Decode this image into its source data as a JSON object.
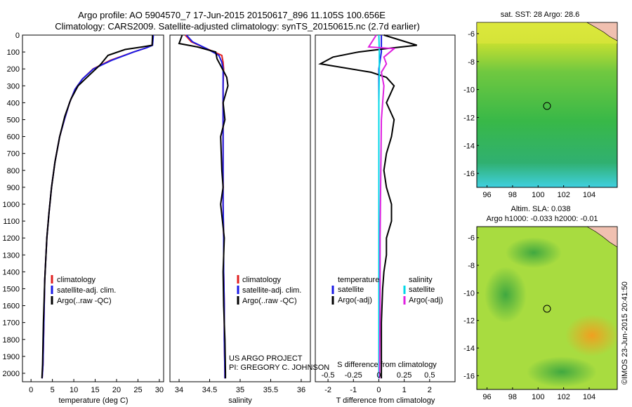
{
  "header": {
    "line1": "Argo profile: AO 5904570_7 17-Jun-2015 20150617_896 11.105S 100.656E",
    "line2": "Climatology: CARS2009. Satellite-adjusted climatology: synTS_20150615.nc (2.7d earlier)"
  },
  "colors": {
    "climatology": "#e02020",
    "satellite": "#1a1ae6",
    "argo": "#000000",
    "sat_salinity": "#00d8e8",
    "argo_salinity": "#e020e0"
  },
  "depth_axis": {
    "range": [
      0,
      2050
    ],
    "ticks": [
      0,
      100,
      200,
      300,
      400,
      500,
      600,
      700,
      800,
      900,
      1000,
      1100,
      1200,
      1300,
      1400,
      1500,
      1600,
      1700,
      1800,
      1900,
      2000
    ]
  },
  "chart_data": [
    {
      "type": "line",
      "id": "temperature",
      "xlabel": "temperature (deg C)",
      "xlim": [
        -2,
        31
      ],
      "xticks": [
        0,
        5,
        10,
        15,
        20,
        25,
        30
      ],
      "ylim": [
        0,
        2050
      ],
      "legend": [
        "climatology",
        "satellite-adj. clim.",
        "Argo(..raw -QC)"
      ],
      "series": [
        {
          "name": "climatology",
          "color": "climatology",
          "x": [
            28.5,
            28.3,
            27.0,
            24.0,
            18.5,
            14.5,
            12.0,
            10.3,
            9.0,
            7.8,
            6.7,
            5.6,
            4.8,
            4.2,
            3.7,
            3.2,
            3.0,
            2.8,
            2.6
          ],
          "y": [
            0,
            60,
            75,
            100,
            150,
            200,
            260,
            320,
            400,
            500,
            600,
            750,
            900,
            1050,
            1200,
            1450,
            1700,
            1950,
            2030
          ]
        },
        {
          "name": "satellite-adj. clim.",
          "color": "satellite",
          "x": [
            28.6,
            28.4,
            27.0,
            24.0,
            18.8,
            14.6,
            12.0,
            10.3,
            9.0,
            7.8,
            6.7,
            5.6,
            4.8,
            4.2,
            3.7,
            3.2,
            3.0,
            2.8,
            2.6
          ],
          "y": [
            0,
            60,
            75,
            100,
            150,
            200,
            260,
            320,
            400,
            500,
            600,
            750,
            900,
            1050,
            1200,
            1450,
            1700,
            1950,
            2030
          ]
        },
        {
          "name": "Argo(..raw -QC)",
          "color": "argo",
          "x": [
            28.4,
            28.3,
            26.0,
            22.0,
            18.0,
            16.2,
            13.5,
            11.0,
            9.3,
            7.9,
            6.7,
            5.6,
            4.8,
            4.2,
            3.7,
            3.2,
            2.9,
            2.7,
            2.55
          ],
          "y": [
            0,
            60,
            70,
            85,
            120,
            175,
            240,
            300,
            380,
            480,
            600,
            750,
            900,
            1050,
            1200,
            1450,
            1700,
            1950,
            2030
          ]
        }
      ]
    },
    {
      "type": "line",
      "id": "salinity",
      "xlabel": "salinity",
      "xlim": [
        33.85,
        36.15
      ],
      "xticks": [
        34,
        34.5,
        35,
        35.5,
        36
      ],
      "ylim": [
        0,
        2050
      ],
      "legend": [
        "climatology",
        "satellite-adj. clim.",
        "Argo(..raw -QC)"
      ],
      "series": [
        {
          "name": "climatology",
          "color": "climatology",
          "x": [
            34.1,
            34.2,
            34.45,
            34.7,
            34.72,
            34.73,
            34.72,
            34.72,
            34.72,
            34.72,
            34.72,
            34.73,
            34.73,
            34.74,
            34.74,
            34.75,
            34.75
          ],
          "y": [
            0,
            40,
            80,
            120,
            160,
            200,
            300,
            400,
            600,
            800,
            1000,
            1200,
            1400,
            1600,
            1800,
            2000,
            2030
          ]
        },
        {
          "name": "satellite-adj. clim.",
          "color": "satellite",
          "x": [
            34.12,
            34.22,
            34.45,
            34.65,
            34.7,
            34.72,
            34.72,
            34.72,
            34.72,
            34.72,
            34.72,
            34.73,
            34.73,
            34.74,
            34.74,
            34.75,
            34.75
          ],
          "y": [
            0,
            40,
            80,
            120,
            160,
            200,
            300,
            400,
            600,
            800,
            1000,
            1200,
            1400,
            1600,
            1800,
            2000,
            2030
          ]
        },
        {
          "name": "Argo(..raw -QC)",
          "color": "argo",
          "x": [
            34.05,
            34.0,
            34.3,
            34.6,
            34.62,
            34.68,
            34.78,
            34.8,
            34.72,
            34.75,
            34.68,
            34.7,
            34.72,
            34.68,
            34.74,
            34.72,
            34.73,
            34.75,
            34.76,
            34.76
          ],
          "y": [
            0,
            50,
            70,
            100,
            140,
            180,
            250,
            300,
            400,
            500,
            600,
            800,
            900,
            1000,
            1200,
            1400,
            1600,
            1800,
            2000,
            2030
          ]
        }
      ]
    },
    {
      "type": "line",
      "id": "difference",
      "xlabel": "T difference from climatology",
      "xlabel_top": "S difference from climatology",
      "xlim": [
        -2.5,
        3.0
      ],
      "xticks": [
        -2,
        -1,
        0,
        1,
        2
      ],
      "sticks": [
        -0.5,
        -0.25,
        0,
        0.25,
        0.5
      ],
      "ylim": [
        0,
        2050
      ],
      "legend_left_title": "temperature",
      "legend_left": [
        "satellite",
        "Argo(-adj)"
      ],
      "legend_right_title": "salinity",
      "legend_right": [
        "satellite",
        "Argo(-adj)"
      ],
      "series": [
        {
          "name": "T satellite",
          "color": "satellite",
          "x": [
            0.1,
            0.1,
            0.0,
            0.0,
            0.0,
            0.0,
            0.0,
            0.0
          ],
          "y": [
            0,
            100,
            200,
            400,
            800,
            1200,
            1600,
            2030
          ]
        },
        {
          "name": "T Argo(-adj)",
          "color": "argo",
          "x": [
            0.2,
            1.5,
            0.3,
            -0.8,
            -1.8,
            -2.3,
            -0.3,
            0.3,
            0.6,
            0.3,
            0.6,
            0.5,
            0.3,
            0.2,
            0.3,
            0.5,
            0.5,
            0.3,
            0.3,
            0.2,
            0.15,
            0.1,
            0.1,
            0.1
          ],
          "y": [
            0,
            60,
            80,
            100,
            130,
            170,
            220,
            250,
            300,
            400,
            500,
            600,
            700,
            800,
            900,
            1000,
            1100,
            1200,
            1300,
            1400,
            1500,
            1700,
            1900,
            2030
          ]
        },
        {
          "name": "S satellite",
          "color": "sat_salinity",
          "x": [
            0.0,
            0.02,
            0.02,
            0.0,
            0.0,
            0.0,
            0.0,
            0.0
          ],
          "y": [
            0,
            100,
            200,
            400,
            800,
            1200,
            1600,
            2030
          ]
        },
        {
          "name": "S Argo(-adj)",
          "color": "argo_salinity",
          "x": [
            -0.1,
            -0.4,
            0.6,
            0.2,
            0.3,
            0.1,
            0.2,
            0.1,
            0.08,
            0.05,
            0.05,
            0.03
          ],
          "y": [
            0,
            70,
            80,
            130,
            170,
            220,
            300,
            500,
            800,
            1200,
            1600,
            2030
          ]
        }
      ]
    }
  ],
  "sst_map": {
    "title": "sat. SST: 28 Argo: 28.6",
    "xticks": [
      96,
      98,
      100,
      102,
      104
    ],
    "yticks": [
      -6,
      -8,
      -10,
      -12,
      -14,
      -16
    ]
  },
  "sla_map": {
    "title1": "Altim. SLA: 0.038",
    "title2": "Argo h1000: -0.033 h2000: -0.01",
    "xticks": [
      96,
      98,
      100,
      102,
      104
    ],
    "yticks": [
      -6,
      -8,
      -10,
      -12,
      -14,
      -16
    ]
  },
  "annotations": {
    "project": "US ARGO PROJECT",
    "pi": "PI: GREGORY C. JOHNSON",
    "stamp": "©IMOS 23-Jun-2015 20:41:50"
  }
}
